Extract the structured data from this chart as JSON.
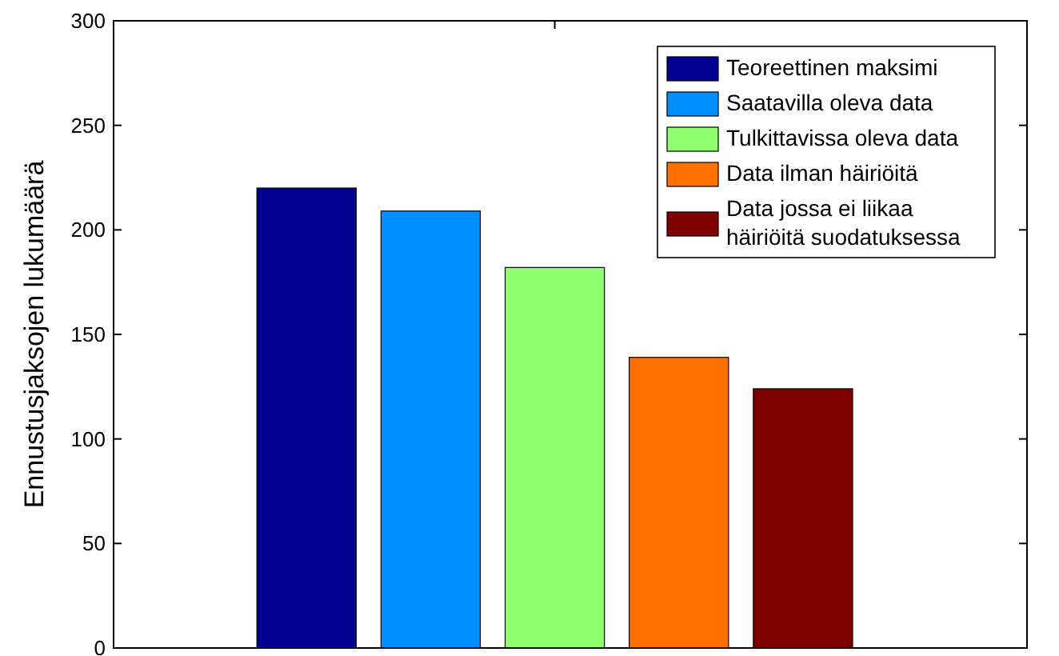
{
  "chart_data": {
    "type": "bar",
    "ylabel": "Ennustusjaksojen lukumäärä",
    "categories": [
      null
    ],
    "series": [
      {
        "name": "Teoreettinen maksimi",
        "color": "#00008f",
        "values": [
          220
        ]
      },
      {
        "name": "Saatavilla oleva data",
        "color": "#008fff",
        "values": [
          209
        ]
      },
      {
        "name": "Tulkittavissa oleva data",
        "color": "#8fff6f",
        "values": [
          182
        ]
      },
      {
        "name": "Data ilman häiriöitä",
        "color": "#ff7000",
        "values": [
          139
        ]
      },
      {
        "name": "Data jossa ei liikaa\nhäiriöitä suodatuksessa",
        "color": "#800000",
        "values": [
          124
        ]
      }
    ],
    "ylim": [
      0,
      300
    ],
    "yticks": [
      0,
      50,
      100,
      150,
      200,
      250,
      300
    ],
    "grid": false,
    "legend": "top right"
  }
}
